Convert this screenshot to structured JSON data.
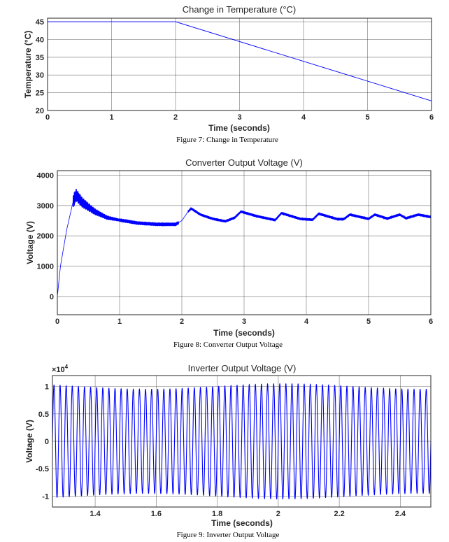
{
  "series_color": "#0000ff",
  "chart_data": [
    {
      "type": "line",
      "title": "Change in Temperature (°C)",
      "xlabel": "Time (seconds)",
      "ylabel": "Temperature (°C)",
      "xlim": [
        0,
        6
      ],
      "ylim": [
        20,
        46
      ],
      "xticks": [
        0,
        1,
        2,
        3,
        4,
        5,
        6
      ],
      "yticks": [
        20,
        25,
        30,
        35,
        40,
        45
      ],
      "grid": true,
      "x": [
        0,
        2,
        6
      ],
      "y": [
        45,
        45,
        22.7
      ],
      "caption": "Figure 7: Change in Temperature"
    },
    {
      "type": "line",
      "title": "Converter Output Voltage (V)",
      "xlabel": "Time (seconds)",
      "ylabel": "Voltage (V)",
      "xlim": [
        0,
        6
      ],
      "ylim": [
        -600,
        4150
      ],
      "xticks": [
        0,
        1,
        2,
        3,
        4,
        5,
        6
      ],
      "yticks": [
        0,
        1000,
        2000,
        3000,
        4000
      ],
      "grid": true,
      "x": [
        0,
        0.05,
        0.15,
        0.25,
        0.3,
        0.4,
        0.6,
        0.8,
        1.0,
        1.3,
        1.6,
        1.9,
        2.0,
        2.1,
        2.15,
        2.3,
        2.5,
        2.7,
        2.85,
        2.95,
        3.2,
        3.5,
        3.6,
        3.9,
        4.1,
        4.2,
        4.5,
        4.6,
        4.7,
        5.0,
        5.1,
        5.3,
        5.5,
        5.6,
        5.8,
        6.0
      ],
      "y": [
        0,
        1000,
        2200,
        3100,
        3350,
        3100,
        2800,
        2600,
        2520,
        2420,
        2380,
        2380,
        2500,
        2800,
        2900,
        2700,
        2560,
        2480,
        2600,
        2800,
        2650,
        2520,
        2750,
        2560,
        2530,
        2730,
        2550,
        2550,
        2700,
        2560,
        2700,
        2570,
        2700,
        2580,
        2700,
        2620
      ],
      "caption": "Figure 8: Converter Output Voltage"
    },
    {
      "type": "line",
      "title": "Inverter Output Voltage (V)",
      "xlabel": "Time (seconds)",
      "ylabel": "Voltage (V)",
      "exponent_label": "×10",
      "exponent_power": "4",
      "xlim": [
        1.26,
        2.5
      ],
      "ylim": [
        -1.2,
        1.2
      ],
      "xticks": [
        1.4,
        1.6,
        1.8,
        2.0,
        2.2,
        2.4
      ],
      "xticklabels": [
        "1.4",
        "1.6",
        "1.8",
        "2",
        "2.2",
        "2.4"
      ],
      "yticks": [
        -1,
        -0.5,
        0,
        0.5,
        1
      ],
      "grid": true,
      "frequency_hz": 50,
      "amplitude": 1.0,
      "caption": "Figure 9: Inverter Output Voltage"
    }
  ]
}
